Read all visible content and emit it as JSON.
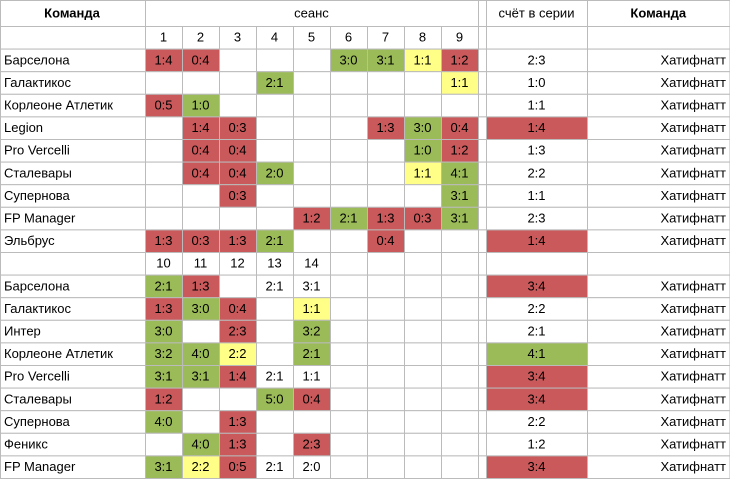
{
  "header": {
    "team": "Команда",
    "session": "сеанс",
    "series": "счёт в серии",
    "opponent": "Команда"
  },
  "blocks": [
    {
      "sessions": [
        1,
        2,
        3,
        4,
        5,
        6,
        7,
        8,
        9
      ],
      "rows": [
        {
          "team": "Барселона",
          "results": [
            "1:4",
            "0:4",
            null,
            null,
            null,
            "3:0",
            "3:1",
            "1:1",
            "1:2"
          ],
          "result_colors": [
            "#c9595b",
            "#c9595b",
            null,
            null,
            null,
            "#9bbb59",
            "#9bbb59",
            "#ffff88",
            "#c9595b"
          ],
          "series": "2:3",
          "series_color": null,
          "opponent": "Хатифнатт"
        },
        {
          "team": "Галактикос",
          "results": [
            null,
            null,
            null,
            "2:1",
            null,
            null,
            null,
            null,
            "1:1"
          ],
          "result_colors": [
            null,
            null,
            null,
            "#9bbb59",
            null,
            null,
            null,
            null,
            "#ffff88"
          ],
          "series": "1:0",
          "series_color": null,
          "opponent": "Хатифнатт"
        },
        {
          "team": "Корлеоне Атлетик",
          "results": [
            "0:5",
            "1:0",
            null,
            null,
            null,
            null,
            null,
            null,
            null
          ],
          "result_colors": [
            "#c9595b",
            "#9bbb59",
            null,
            null,
            null,
            null,
            null,
            null,
            null
          ],
          "series": "1:1",
          "series_color": null,
          "opponent": "Хатифнатт"
        },
        {
          "team": "Legion",
          "results": [
            null,
            "1:4",
            "0:3",
            null,
            null,
            null,
            "1:3",
            "3:0",
            "0:4"
          ],
          "result_colors": [
            null,
            "#c9595b",
            "#c9595b",
            null,
            null,
            null,
            "#c9595b",
            "#9bbb59",
            "#c9595b"
          ],
          "series": "1:4",
          "series_color": "#c9595b",
          "opponent": "Хатифнатт"
        },
        {
          "team": "Pro Vercelli",
          "results": [
            null,
            "0:4",
            "0:4",
            null,
            null,
            null,
            null,
            "1:0",
            "1:2"
          ],
          "result_colors": [
            null,
            "#c9595b",
            "#c9595b",
            null,
            null,
            null,
            null,
            "#9bbb59",
            "#c9595b"
          ],
          "series": "1:3",
          "series_color": null,
          "opponent": "Хатифнатт"
        },
        {
          "team": "Сталевары",
          "results": [
            null,
            "0:4",
            "0:4",
            "2:0",
            null,
            null,
            null,
            "1:1",
            "4:1"
          ],
          "result_colors": [
            null,
            "#c9595b",
            "#c9595b",
            "#9bbb59",
            null,
            null,
            null,
            "#ffff88",
            "#9bbb59"
          ],
          "series": "2:2",
          "series_color": null,
          "opponent": "Хатифнатт"
        },
        {
          "team": "Супернова",
          "results": [
            null,
            null,
            "0:3",
            null,
            null,
            null,
            null,
            null,
            "3:1"
          ],
          "result_colors": [
            null,
            null,
            "#c9595b",
            null,
            null,
            null,
            null,
            null,
            "#9bbb59"
          ],
          "series": "1:1",
          "series_color": null,
          "opponent": "Хатифнатт"
        },
        {
          "team": "FP Manager",
          "results": [
            null,
            null,
            null,
            null,
            "1:2",
            "2:1",
            "1:3",
            "0:3",
            "3:1"
          ],
          "result_colors": [
            null,
            null,
            null,
            null,
            "#c9595b",
            "#9bbb59",
            "#c9595b",
            "#c9595b",
            "#9bbb59"
          ],
          "series": "2:3",
          "series_color": null,
          "opponent": "Хатифнатт"
        },
        {
          "team": "Эльбрус",
          "results": [
            "1:3",
            "0:3",
            "1:3",
            "2:1",
            null,
            null,
            "0:4",
            null,
            null
          ],
          "result_colors": [
            "#c9595b",
            "#c9595b",
            "#c9595b",
            "#9bbb59",
            null,
            null,
            "#c9595b",
            null,
            null
          ],
          "series": "1:4",
          "series_color": "#c9595b",
          "opponent": "Хатифнатт"
        }
      ]
    },
    {
      "sessions": [
        10,
        11,
        12,
        13,
        14
      ],
      "rows": [
        {
          "team": "Барселона",
          "results": [
            "2:1",
            "1:3",
            null,
            "2:1",
            "3:1"
          ],
          "result_colors": [
            "#9bbb59",
            "#c9595b",
            null,
            null,
            null
          ],
          "series": "3:4",
          "series_color": "#c9595b",
          "opponent": "Хатифнатт"
        },
        {
          "team": "Галактикос",
          "results": [
            "1:3",
            "3:0",
            "0:4",
            null,
            "1:1"
          ],
          "result_colors": [
            "#c9595b",
            "#9bbb59",
            "#c9595b",
            null,
            "#ffff88"
          ],
          "series": "2:2",
          "series_color": null,
          "opponent": "Хатифнатт"
        },
        {
          "team": "Интер",
          "results": [
            "3:0",
            null,
            "2:3",
            null,
            "3:2"
          ],
          "result_colors": [
            "#9bbb59",
            null,
            "#c9595b",
            null,
            "#9bbb59"
          ],
          "series": "2:1",
          "series_color": null,
          "opponent": "Хатифнатт"
        },
        {
          "team": "Корлеоне Атлетик",
          "results": [
            "3:2",
            "4:0",
            "2:2",
            null,
            "2:1"
          ],
          "result_colors": [
            "#9bbb59",
            "#9bbb59",
            "#ffff88",
            null,
            "#9bbb59"
          ],
          "series": "4:1",
          "series_color": "#9bbb59",
          "opponent": "Хатифнатт"
        },
        {
          "team": "Pro Vercelli",
          "results": [
            "3:1",
            "3:1",
            "1:4",
            "2:1",
            "1:1"
          ],
          "result_colors": [
            "#9bbb59",
            "#9bbb59",
            "#c9595b",
            null,
            null
          ],
          "series": "3:4",
          "series_color": "#c9595b",
          "opponent": "Хатифнатт"
        },
        {
          "team": "Сталевары",
          "results": [
            "1:2",
            null,
            null,
            "5:0",
            "0:4"
          ],
          "result_colors": [
            "#c9595b",
            null,
            null,
            "#9bbb59",
            "#c9595b"
          ],
          "series": "3:4",
          "series_color": "#c9595b",
          "opponent": "Хатифнатт"
        },
        {
          "team": "Супернова",
          "results": [
            "4:0",
            null,
            "1:3",
            null,
            null
          ],
          "result_colors": [
            "#9bbb59",
            null,
            "#c9595b",
            null,
            null
          ],
          "series": "2:2",
          "series_color": null,
          "opponent": "Хатифнатт"
        },
        {
          "team": "Феникс",
          "results": [
            null,
            "4:0",
            "1:3",
            null,
            "2:3"
          ],
          "result_colors": [
            null,
            "#9bbb59",
            "#c9595b",
            null,
            "#c9595b"
          ],
          "series": "1:2",
          "series_color": null,
          "opponent": "Хатифнатт"
        },
        {
          "team": "FP Manager",
          "results": [
            "3:1",
            "2:2",
            "0:5",
            "2:1",
            "2:0"
          ],
          "result_colors": [
            "#9bbb59",
            "#ffff88",
            "#c9595b",
            null,
            null
          ],
          "series": "3:4",
          "series_color": "#c9595b",
          "opponent": "Хатифнатт"
        }
      ]
    }
  ]
}
